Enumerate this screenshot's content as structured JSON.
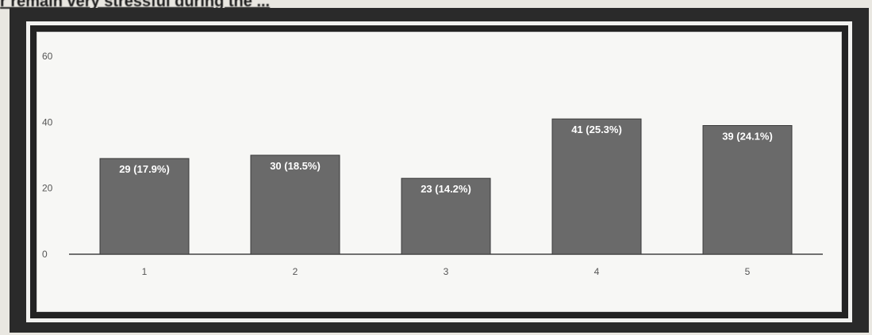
{
  "heading": "r remain very stressful during the ...",
  "chart_data": {
    "type": "bar",
    "categories": [
      "1",
      "2",
      "3",
      "4",
      "5"
    ],
    "values": [
      29,
      30,
      23,
      41,
      39
    ],
    "data_labels": [
      "29 (17.9%)",
      "30 (18.5%)",
      "23 (14.2%)",
      "41 (25.3%)",
      "39 (24.1%)"
    ],
    "y_ticks": [
      "0",
      "20",
      "40",
      "60"
    ],
    "ylim": [
      0,
      60
    ],
    "grid": false,
    "bar_color": "#6a6a6a"
  }
}
